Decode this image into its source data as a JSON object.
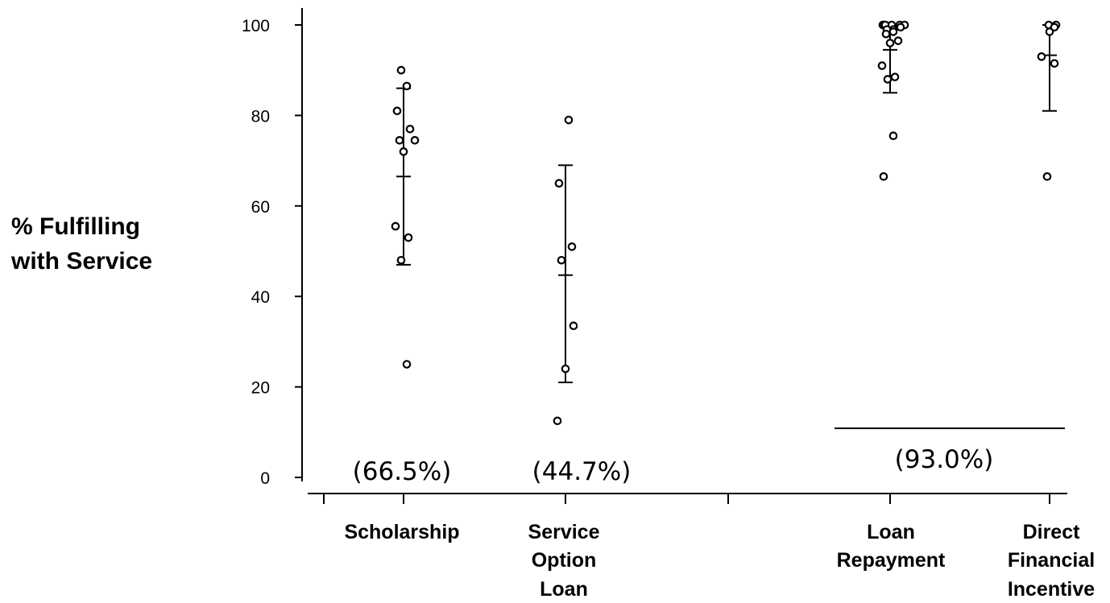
{
  "chart_data": {
    "type": "scatter",
    "title": "",
    "ylabel_lines": [
      "% Fulfilling",
      "with Service"
    ],
    "xlabel": "",
    "ylim": [
      0,
      100
    ],
    "yticks": [
      "0",
      "20",
      "40",
      "60",
      "80",
      "100"
    ],
    "categories": [
      {
        "id": "scholarship",
        "label_lines": [
          "Scholarship"
        ],
        "mean": 66.5,
        "error_low": 47,
        "error_high": 86,
        "points": [
          90,
          86.5,
          81,
          77,
          74.5,
          74.5,
          72,
          55.5,
          53,
          48,
          25
        ],
        "annotation": "(66.5%)"
      },
      {
        "id": "service-option-loan",
        "label_lines": [
          "Service",
          "Option",
          "Loan"
        ],
        "mean": 44.7,
        "error_low": 21,
        "error_high": 69,
        "points": [
          79,
          65,
          51,
          48,
          33.5,
          24,
          12.5
        ],
        "annotation": "(44.7%)"
      },
      {
        "id": "loan-repayment",
        "label_lines": [
          "Loan",
          "Repayment"
        ],
        "mean": 94.5,
        "error_low": 85,
        "error_high": 100,
        "points": [
          100,
          100,
          100,
          100,
          100,
          100,
          100,
          99.5,
          99,
          99,
          98.5,
          98,
          96.5,
          96,
          91,
          88.5,
          88,
          75.5,
          66.5
        ],
        "annotation": ""
      },
      {
        "id": "direct-financial-incentive",
        "label_lines": [
          "Direct",
          "Financial",
          "Incentive"
        ],
        "mean": 93.3,
        "error_low": 81,
        "error_high": 100,
        "points": [
          100,
          100,
          99.5,
          98.5,
          93,
          91.5,
          66.5
        ],
        "annotation": ""
      }
    ],
    "group_annotation": "(93.0%)",
    "grid": false,
    "legend": "none"
  }
}
